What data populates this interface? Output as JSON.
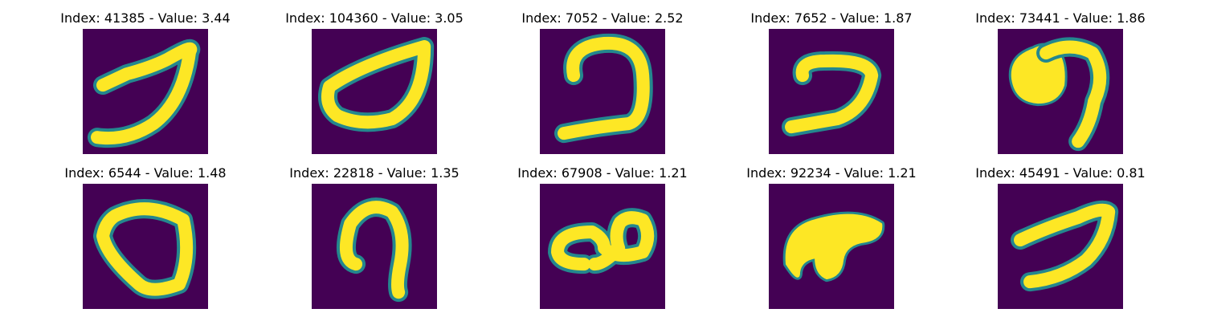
{
  "colors": {
    "background": "#440154",
    "foreground": "#fde725",
    "edge": "#24878e"
  },
  "panels": [
    {
      "title": "Index: 41385 - Value: 3.44",
      "index": 41385,
      "value": 3.44
    },
    {
      "title": "Index: 104360 - Value: 3.05",
      "index": 104360,
      "value": 3.05
    },
    {
      "title": "Index: 7052 - Value: 2.52",
      "index": 7052,
      "value": 2.52
    },
    {
      "title": "Index: 7652 - Value: 1.87",
      "index": 7652,
      "value": 1.87
    },
    {
      "title": "Index: 73441 - Value: 1.86",
      "index": 73441,
      "value": 1.86
    },
    {
      "title": "Index: 6544 - Value: 1.48",
      "index": 6544,
      "value": 1.48
    },
    {
      "title": "Index: 22818 - Value: 1.35",
      "index": 22818,
      "value": 1.35
    },
    {
      "title": "Index: 67908 - Value: 1.21",
      "index": 67908,
      "value": 1.21
    },
    {
      "title": "Index: 92234 - Value: 1.21",
      "index": 92234,
      "value": 1.21
    },
    {
      "title": "Index: 45491 - Value: 0.81",
      "index": 45491,
      "value": 0.81
    }
  ]
}
